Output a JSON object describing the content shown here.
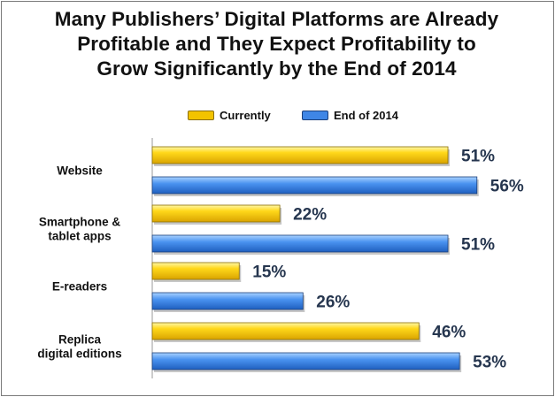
{
  "chart_data": {
    "type": "bar",
    "orientation": "horizontal",
    "title": "Many Publishers’ Digital Platforms are Already\nProfitable and They Expect Profitability to\nGrow Significantly by the End of 2014",
    "categories": [
      "Website",
      "Smartphone &\ntablet apps",
      "E-readers",
      "Replica\ndigital editions"
    ],
    "series": [
      {
        "name": "Currently",
        "values": [
          51,
          22,
          15,
          46
        ],
        "labels": [
          "51%",
          "22%",
          "15%",
          "46%"
        ],
        "color": "#f2c300"
      },
      {
        "name": "End of 2014",
        "values": [
          56,
          51,
          26,
          53
        ],
        "labels": [
          "56%",
          "51%",
          "26%",
          "53%"
        ],
        "color": "#3f86e6"
      }
    ],
    "xlim": [
      0,
      60
    ],
    "grid": false,
    "legend_position": "top"
  }
}
